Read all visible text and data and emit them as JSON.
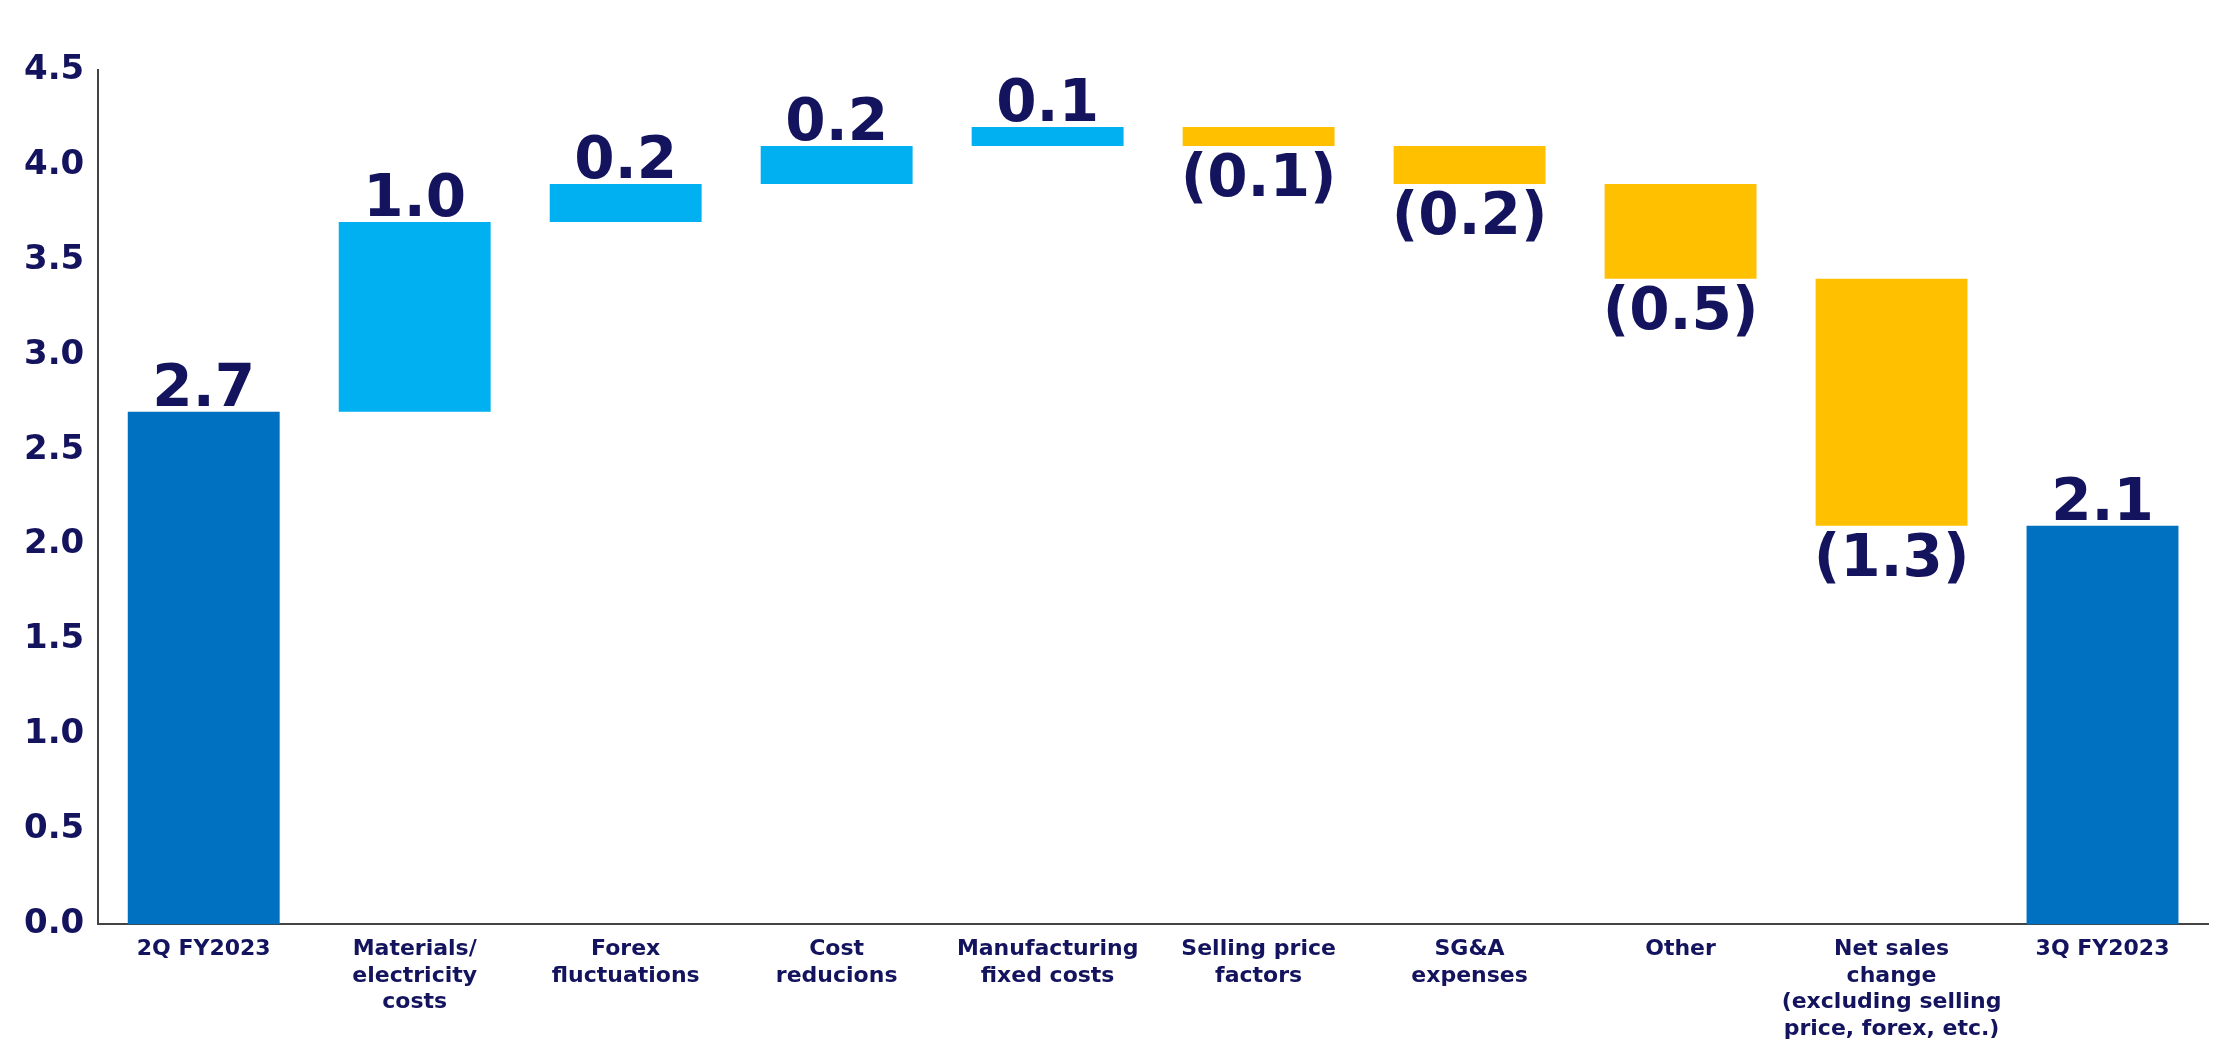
{
  "chart_data": {
    "type": "bar",
    "categories": [
      "2Q FY2023",
      "Materials/\nelectricity\ncosts",
      "Forex\nfluctuations",
      "Cost\nreducions",
      "Manufacturing\nfixed costs",
      "Selling price\nfactors",
      "SG&A\nexpenses",
      "Other",
      "Net sales\nchange\n(excluding selling\nprice, forex, etc.)",
      "3Q FY2023"
    ],
    "values": [
      2.7,
      1.0,
      0.2,
      0.2,
      0.1,
      -0.1,
      -0.2,
      -0.5,
      -1.3,
      2.1
    ],
    "base": [
      0,
      2.7,
      3.7,
      3.9,
      4.1,
      4.2,
      4.1,
      3.9,
      3.4,
      0
    ],
    "colors": [
      "#0070c0",
      "#00b0f0",
      "#00b0f0",
      "#00b0f0",
      "#00b0f0",
      "#ffc000",
      "#ffc000",
      "#ffc000",
      "#ffc000",
      "#0070c0"
    ],
    "value_labels": [
      "2.7",
      "1.0",
      "0.2",
      "0.2",
      "0.1",
      "(0.1)",
      "(0.2)",
      "(0.5)",
      "(1.3)",
      "2.1"
    ],
    "ylim": [
      0,
      4.5
    ],
    "yticks": [
      {
        "value": 0,
        "label": "0.0"
      },
      {
        "value": 0.5,
        "label": "0.5"
      },
      {
        "value": 1,
        "label": "1.0"
      },
      {
        "value": 1.5,
        "label": "1.5"
      },
      {
        "value": 2,
        "label": "2.0"
      },
      {
        "value": 2.5,
        "label": "2.5"
      },
      {
        "value": 3,
        "label": "3.0"
      },
      {
        "value": 3.5,
        "label": "3.5"
      },
      {
        "value": 4,
        "label": "4.0"
      },
      {
        "value": 4.5,
        "label": "4.5"
      }
    ],
    "grid": false,
    "legend": false
  }
}
